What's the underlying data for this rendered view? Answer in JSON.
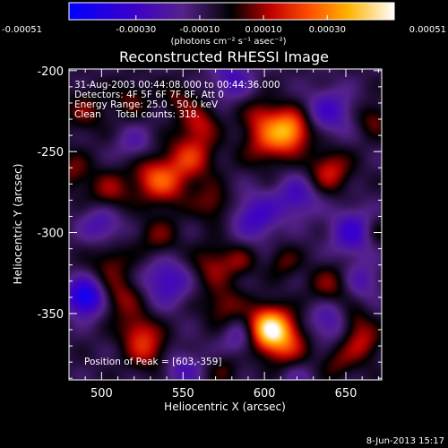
{
  "colorbar": {
    "ticks": [
      "-0.00051",
      "-0.00030",
      "-0.00010",
      "0.00010",
      "0.00030",
      "0.00051"
    ],
    "tick_values": [
      -0.00051,
      -0.0003,
      -0.0001,
      0.0001,
      0.0003,
      0.00051
    ],
    "units_label": "(photons cm⁻² s⁻¹ asec⁻²)",
    "range": [
      -0.00051,
      0.00051
    ]
  },
  "chart_data": {
    "type": "heatmap",
    "title": "Reconstructed RHESSI Image",
    "xlabel": "Heliocentric X (arcsec)",
    "ylabel": "Heliocentric Y (arcsec)",
    "xlim": [
      480,
      672
    ],
    "ylim": [
      -391,
      -199
    ],
    "x_ticks": [
      500,
      550,
      600,
      650
    ],
    "y_ticks": [
      -200,
      -250,
      -300,
      -350
    ],
    "annotations": [
      "31-Aug-2003 00:44:08.000 to 00:44:36.000",
      "Detectors: 4F 5F 6F 7F 8F, Att 0",
      "Energy Range: 25.0 - 50.0 keV",
      "Clean     Total counts: 318."
    ],
    "peak_label": "Position of Peak = [603,-359]",
    "peak": [
      603,
      -359
    ],
    "blobs": [
      {
        "x": 603,
        "y": -359,
        "value": 0.00051,
        "w": 9
      },
      {
        "x": 613,
        "y": -369,
        "value": 0.00022,
        "w": 10
      },
      {
        "x": 615,
        "y": -237,
        "value": 0.0004,
        "w": 9
      },
      {
        "x": 600,
        "y": -245,
        "value": 0.00018,
        "w": 10
      },
      {
        "x": 640,
        "y": -262,
        "value": 0.00022,
        "w": 9
      },
      {
        "x": 598,
        "y": -228,
        "value": 0.00015,
        "w": 8
      },
      {
        "x": 555,
        "y": -253,
        "value": 0.00024,
        "w": 10
      },
      {
        "x": 540,
        "y": -270,
        "value": 0.0002,
        "w": 10
      },
      {
        "x": 560,
        "y": -232,
        "value": 0.00018,
        "w": 8
      },
      {
        "x": 530,
        "y": -265,
        "value": 0.00016,
        "w": 9
      },
      {
        "x": 505,
        "y": -275,
        "value": 0.00017,
        "w": 9
      },
      {
        "x": 482,
        "y": -262,
        "value": 0.00014,
        "w": 8
      },
      {
        "x": 490,
        "y": -225,
        "value": 0.00013,
        "w": 9
      },
      {
        "x": 518,
        "y": -218,
        "value": 0.00012,
        "w": 8
      },
      {
        "x": 547,
        "y": -217,
        "value": 0.00012,
        "w": 7
      },
      {
        "x": 568,
        "y": -282,
        "value": 0.00015,
        "w": 8
      },
      {
        "x": 535,
        "y": -303,
        "value": 0.00013,
        "w": 9
      },
      {
        "x": 505,
        "y": -318,
        "value": 0.00013,
        "w": 9
      },
      {
        "x": 512,
        "y": -340,
        "value": 0.00016,
        "w": 9
      },
      {
        "x": 528,
        "y": -372,
        "value": 0.0002,
        "w": 9
      },
      {
        "x": 522,
        "y": -360,
        "value": 0.00015,
        "w": 8
      },
      {
        "x": 568,
        "y": -320,
        "value": 0.00016,
        "w": 9
      },
      {
        "x": 575,
        "y": -345,
        "value": 0.00015,
        "w": 9
      },
      {
        "x": 585,
        "y": -318,
        "value": 0.00012,
        "w": 7
      },
      {
        "x": 640,
        "y": -333,
        "value": 0.00015,
        "w": 9
      },
      {
        "x": 660,
        "y": -368,
        "value": 0.00018,
        "w": 8
      },
      {
        "x": 645,
        "y": -380,
        "value": 0.00012,
        "w": 8
      },
      {
        "x": 612,
        "y": -318,
        "value": 0.00012,
        "w": 7
      },
      {
        "x": 667,
        "y": -230,
        "value": 0.00014,
        "w": 7
      },
      {
        "x": 668,
        "y": -300,
        "value": 0.00012,
        "w": 7
      },
      {
        "x": 575,
        "y": -385,
        "value": 0.0001,
        "w": 7
      },
      {
        "x": 655,
        "y": -355,
        "value": 0.00012,
        "w": 7
      },
      {
        "x": 490,
        "y": -340,
        "value": -0.0004,
        "w": 8
      },
      {
        "x": 540,
        "y": -330,
        "value": -0.00022,
        "w": 10
      },
      {
        "x": 640,
        "y": -225,
        "value": -0.0002,
        "w": 10
      },
      {
        "x": 655,
        "y": -300,
        "value": -0.00025,
        "w": 10
      },
      {
        "x": 595,
        "y": -290,
        "value": -0.00022,
        "w": 10
      },
      {
        "x": 580,
        "y": -205,
        "value": -0.00018,
        "w": 9
      },
      {
        "x": 550,
        "y": -385,
        "value": -0.00015,
        "w": 9
      },
      {
        "x": 640,
        "y": -355,
        "value": -0.00018,
        "w": 9
      },
      {
        "x": 620,
        "y": -278,
        "value": -0.0002,
        "w": 9
      },
      {
        "x": 500,
        "y": -295,
        "value": -0.00018,
        "w": 9
      },
      {
        "x": 585,
        "y": -365,
        "value": -0.00015,
        "w": 8
      },
      {
        "x": 660,
        "y": -330,
        "value": -0.00015,
        "w": 8
      },
      {
        "x": 520,
        "y": -245,
        "value": -0.00012,
        "w": 8
      },
      {
        "x": 620,
        "y": -390,
        "value": -0.0001,
        "w": 8
      }
    ]
  },
  "footer": {
    "date": "8-Jun-2013 15:17"
  }
}
